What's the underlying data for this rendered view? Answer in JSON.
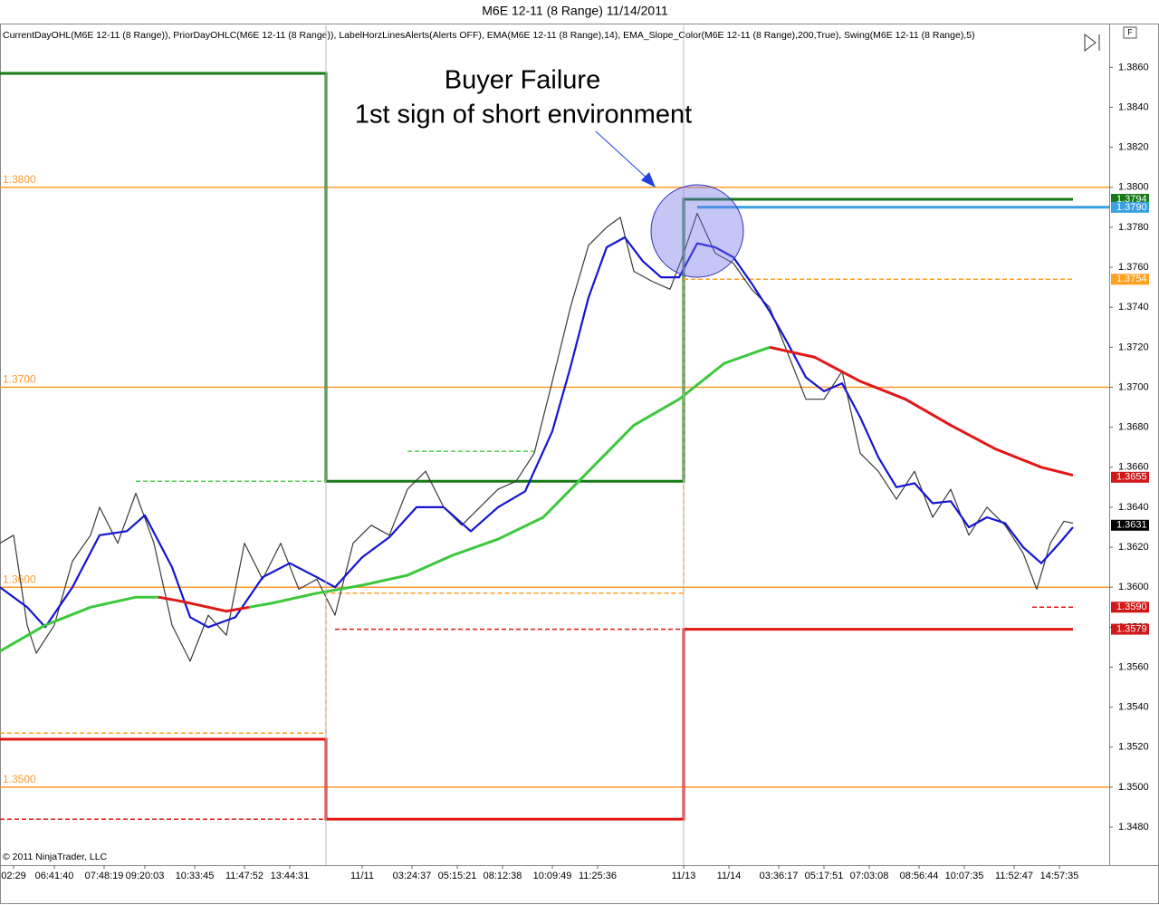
{
  "chart_data": {
    "type": "line",
    "title": "M6E 12-11 (8 Range)  11/14/2011",
    "indicators": "CurrentDayOHL(M6E 12-11 (8 Range)), PriorDayOHLC(M6E 12-11 (8 Range)), LabelHorzLinesAlerts(Alerts OFF), EMA(M6E 12-11 (8 Range),14), EMA_Slope_Color(M6E 12-11 (8 Range),200,True), Swing(M6E 12-11 (8 Range),5)",
    "copyright": "© 2011 NinjaTrader, LLC",
    "annotations": [
      "Buyer Failure",
      "1st sign of short environment"
    ],
    "xlim": [
      0,
      245
    ],
    "xticks": [
      {
        "value": 3,
        "label": "02:29"
      },
      {
        "value": 12,
        "label": "06:41:40"
      },
      {
        "value": 23,
        "label": "07:48:19"
      },
      {
        "value": 32,
        "label": "09:20:03"
      },
      {
        "value": 43,
        "label": "10:33:45"
      },
      {
        "value": 54,
        "label": "11:47:52"
      },
      {
        "value": 64,
        "label": "13:44:31"
      },
      {
        "value": 80,
        "label": "11/11"
      },
      {
        "value": 91,
        "label": "03:24:37"
      },
      {
        "value": 101,
        "label": "05:15:21"
      },
      {
        "value": 111,
        "label": "08:12:38"
      },
      {
        "value": 122,
        "label": "10:09:49"
      },
      {
        "value": 132,
        "label": "11:25:36"
      },
      {
        "value": 151,
        "label": "11/13"
      },
      {
        "value": 161,
        "label": "11/14"
      },
      {
        "value": 172,
        "label": "03:36:17"
      },
      {
        "value": 182,
        "label": "05:17:51"
      },
      {
        "value": 192,
        "label": "07:03:08"
      },
      {
        "value": 203,
        "label": "08:56:44"
      },
      {
        "value": 213,
        "label": "10:07:35"
      },
      {
        "value": 224,
        "label": "11:52:47"
      },
      {
        "value": 234,
        "label": "14:57:35"
      }
    ],
    "ylim": [
      1.3461,
      1.3881
    ],
    "yticks": [
      {
        "value": 1.348,
        "label": "1.3480"
      },
      {
        "value": 1.35,
        "label": "1.3500"
      },
      {
        "value": 1.352,
        "label": "1.3520"
      },
      {
        "value": 1.354,
        "label": "1.3540"
      },
      {
        "value": 1.356,
        "label": "1.3560"
      },
      {
        "value": 1.358,
        "label": "1.3580"
      },
      {
        "value": 1.36,
        "label": "1.3600"
      },
      {
        "value": 1.362,
        "label": "1.3620"
      },
      {
        "value": 1.364,
        "label": "1.3640"
      },
      {
        "value": 1.366,
        "label": "1.3660"
      },
      {
        "value": 1.368,
        "label": "1.3680"
      },
      {
        "value": 1.37,
        "label": "1.3700"
      },
      {
        "value": 1.372,
        "label": "1.3720"
      },
      {
        "value": 1.374,
        "label": "1.3740"
      },
      {
        "value": 1.376,
        "label": "1.3760"
      },
      {
        "value": 1.378,
        "label": "1.3780"
      },
      {
        "value": 1.38,
        "label": "1.3800"
      },
      {
        "value": 1.382,
        "label": "1.3820"
      },
      {
        "value": 1.384,
        "label": "1.3840"
      },
      {
        "value": 1.386,
        "label": "1.3860"
      }
    ],
    "pivots": [
      {
        "value": 1.38,
        "label": "1.3800"
      },
      {
        "value": 1.37,
        "label": "1.3700"
      },
      {
        "value": 1.36,
        "label": "1.3600"
      },
      {
        "value": 1.35,
        "label": "1.3500"
      }
    ],
    "pivot_color": "#ff9a2e",
    "series": [
      {
        "color": "#3a3a3a",
        "x": [
          0,
          3,
          6,
          8,
          12,
          16,
          20,
          22,
          26,
          30,
          34,
          38,
          42,
          46,
          50,
          54,
          58,
          62,
          66,
          70,
          74,
          78,
          82,
          86,
          90,
          94,
          98,
          102,
          106,
          110,
          114,
          118,
          122,
          126,
          130,
          134,
          137,
          140,
          144,
          148,
          151,
          154,
          158,
          162,
          166,
          170,
          174,
          178,
          182,
          186,
          190,
          194,
          198,
          202,
          206,
          210,
          214,
          218,
          222,
          226,
          229,
          232,
          235,
          237
        ],
        "values": [
          1.3622,
          1.3626,
          1.3581,
          1.3567,
          1.3581,
          1.3613,
          1.3626,
          1.364,
          1.3622,
          1.3647,
          1.3622,
          1.3581,
          1.3563,
          1.3586,
          1.3576,
          1.3622,
          1.3604,
          1.3622,
          1.3599,
          1.3604,
          1.3586,
          1.3622,
          1.3631,
          1.3626,
          1.3649,
          1.3658,
          1.364,
          1.3631,
          1.364,
          1.3649,
          1.3653,
          1.3667,
          1.3703,
          1.374,
          1.3771,
          1.378,
          1.3785,
          1.3758,
          1.3753,
          1.3749,
          1.3767,
          1.3787,
          1.3767,
          1.3762,
          1.3749,
          1.374,
          1.3717,
          1.3694,
          1.3694,
          1.3708,
          1.3667,
          1.3658,
          1.3644,
          1.3658,
          1.3635,
          1.3649,
          1.3626,
          1.364,
          1.3631,
          1.3617,
          1.3599,
          1.3622,
          1.3633,
          1.3632
        ]
      },
      {
        "color": "#1515d0",
        "x": [
          0,
          6,
          10,
          16,
          22,
          28,
          32,
          38,
          42,
          46,
          52,
          58,
          64,
          70,
          74,
          80,
          86,
          92,
          98,
          104,
          110,
          116,
          122,
          126,
          130,
          134,
          138,
          142,
          146,
          150,
          154,
          158,
          162,
          166,
          170,
          174,
          178,
          182,
          186,
          190,
          194,
          198,
          202,
          206,
          210,
          214,
          218,
          222,
          226,
          230,
          234,
          237
        ],
        "values": [
          1.36,
          1.359,
          1.358,
          1.36,
          1.3626,
          1.3628,
          1.3636,
          1.361,
          1.3585,
          1.358,
          1.3585,
          1.3605,
          1.3612,
          1.3605,
          1.36,
          1.3615,
          1.3625,
          1.364,
          1.364,
          1.3628,
          1.364,
          1.3648,
          1.3678,
          1.371,
          1.3745,
          1.377,
          1.3775,
          1.3763,
          1.3755,
          1.3755,
          1.3772,
          1.377,
          1.3765,
          1.3752,
          1.3738,
          1.3722,
          1.3705,
          1.3698,
          1.3702,
          1.3685,
          1.3665,
          1.365,
          1.3652,
          1.3642,
          1.3643,
          1.363,
          1.3635,
          1.3632,
          1.362,
          1.3612,
          1.3622,
          1.363
        ]
      },
      {
        "color": "#3cc83c",
        "x": [
          0,
          10,
          20,
          30,
          35,
          40,
          50,
          55,
          60,
          70,
          80,
          90,
          100,
          110,
          120,
          130,
          140,
          150,
          160,
          170,
          180,
          190,
          200,
          210,
          220,
          230,
          237
        ],
        "values": [
          1.3568,
          1.3581,
          1.359,
          1.3595,
          1.3595,
          null,
          null,
          1.359,
          1.3592,
          1.3597,
          1.3601,
          1.3606,
          1.3616,
          1.3624,
          1.3635,
          1.3658,
          1.3681,
          1.3694,
          1.3712,
          1.372,
          null,
          null,
          null,
          null,
          null,
          null,
          null
        ]
      },
      {
        "color": "#e01818",
        "x": [
          0,
          10,
          20,
          30,
          35,
          40,
          50,
          55,
          60,
          70,
          80,
          90,
          100,
          110,
          120,
          130,
          140,
          150,
          160,
          170,
          180,
          190,
          200,
          210,
          220,
          230,
          237
        ],
        "values": [
          null,
          null,
          null,
          null,
          1.3595,
          1.3593,
          1.3588,
          1.359,
          null,
          null,
          null,
          null,
          null,
          null,
          null,
          null,
          null,
          null,
          null,
          1.372,
          1.3715,
          1.3703,
          1.3694,
          1.3681,
          1.3669,
          1.366,
          1.3656
        ]
      }
    ],
    "step_lines": [
      {
        "color": "#157a15",
        "dashed": false,
        "x": [
          0,
          72,
          72,
          151,
          151,
          237
        ],
        "values": [
          1.3857,
          1.3857,
          1.3653,
          1.3653,
          1.3794,
          1.3794
        ]
      },
      {
        "color": "#e01818",
        "dashed": false,
        "x": [
          0,
          72,
          72,
          151,
          151,
          237
        ],
        "values": [
          1.3524,
          1.3524,
          1.3484,
          1.3484,
          1.3579,
          1.3579
        ]
      },
      {
        "color": "#ffa020",
        "dashed": true,
        "x": [
          0,
          72,
          72,
          151,
          151,
          237
        ],
        "values": [
          1.3527,
          1.3527,
          1.3597,
          1.3597,
          1.3754,
          1.3754
        ]
      },
      {
        "color": "#e01818",
        "dashed": true,
        "x": [
          0,
          72,
          null,
          74,
          151,
          null,
          228,
          237
        ],
        "values": [
          1.3484,
          1.3484,
          null,
          1.3579,
          1.3579,
          null,
          1.359,
          1.359
        ]
      },
      {
        "color": "#50d050",
        "dashed": true,
        "x": [
          30,
          72,
          null,
          90,
          118
        ],
        "values": [
          1.3653,
          1.3653,
          null,
          1.3668,
          1.3668
        ]
      },
      {
        "color": "#3aa0e0",
        "dashed": false,
        "x": [
          154,
          245
        ],
        "values": [
          1.379,
          1.379
        ]
      }
    ],
    "price_markers": [
      {
        "value": 1.3794,
        "label": "1.3794",
        "color": "#157a15"
      },
      {
        "value": 1.379,
        "label": "1.3790",
        "color": "#3aa0e0"
      },
      {
        "value": 1.3754,
        "label": "1.3754",
        "color": "#ffa020"
      },
      {
        "value": 1.3655,
        "label": "1.3655",
        "color": "#d01818"
      },
      {
        "value": 1.3631,
        "label": "1.3631",
        "color": "#000000"
      },
      {
        "value": 1.359,
        "label": "1.3590",
        "color": "#d01818"
      },
      {
        "value": 1.3579,
        "label": "1.3579",
        "color": "#d01818"
      }
    ]
  }
}
